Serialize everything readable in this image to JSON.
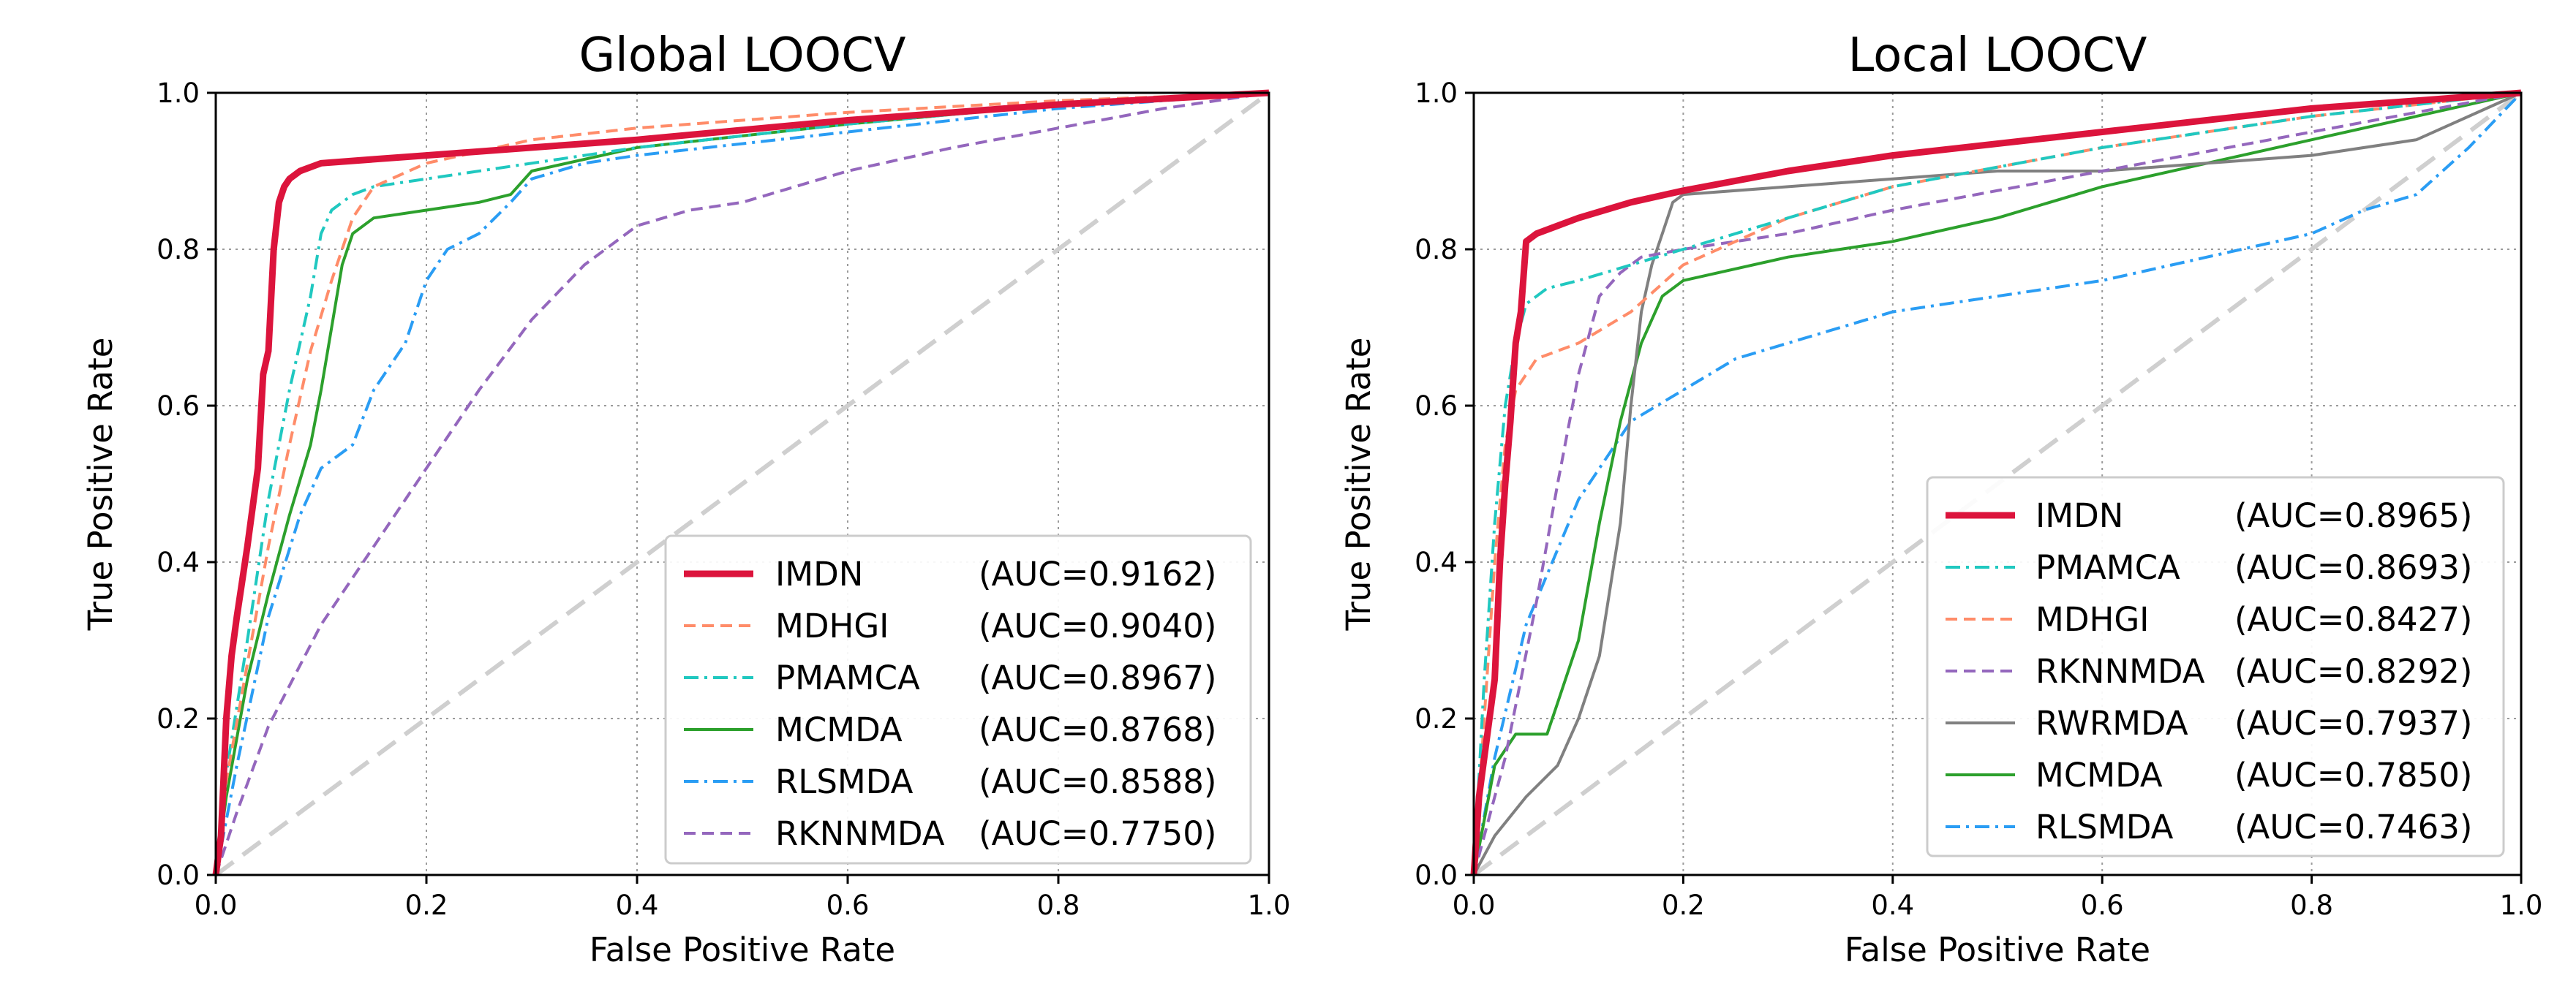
{
  "chart_data": [
    {
      "type": "line",
      "title": "Global LOOCV",
      "xlabel": "False Positive Rate",
      "ylabel": "True Positive Rate",
      "xlim": [
        0.0,
        1.0
      ],
      "ylim": [
        0.0,
        1.0
      ],
      "xticks": [
        "0.0",
        "0.2",
        "0.4",
        "0.6",
        "0.8",
        "1.0"
      ],
      "yticks": [
        "0.0",
        "0.2",
        "0.4",
        "0.6",
        "0.8",
        "1.0"
      ],
      "grid": true,
      "legend_position": "lower-right",
      "series": [
        {
          "name": "IMDN",
          "auc": "(AUC=0.9162)",
          "color": "#dc143c",
          "style": "solid-thick",
          "x": [
            0,
            0.005,
            0.01,
            0.015,
            0.02,
            0.03,
            0.04,
            0.045,
            0.05,
            0.055,
            0.06,
            0.065,
            0.07,
            0.08,
            0.1,
            0.15,
            0.2,
            0.3,
            0.4,
            0.6,
            0.8,
            1.0
          ],
          "y": [
            0,
            0.05,
            0.2,
            0.28,
            0.33,
            0.42,
            0.52,
            0.64,
            0.67,
            0.8,
            0.86,
            0.88,
            0.89,
            0.9,
            0.91,
            0.915,
            0.92,
            0.93,
            0.94,
            0.965,
            0.985,
            1.0
          ]
        },
        {
          "name": "MDHGI",
          "auc": "(AUC=0.9040)",
          "color": "#ff8c69",
          "style": "dashed",
          "x": [
            0,
            0.01,
            0.03,
            0.05,
            0.07,
            0.09,
            0.11,
            0.13,
            0.15,
            0.2,
            0.25,
            0.3,
            0.4,
            0.6,
            0.8,
            1.0
          ],
          "y": [
            0,
            0.12,
            0.27,
            0.42,
            0.55,
            0.67,
            0.76,
            0.84,
            0.88,
            0.91,
            0.925,
            0.94,
            0.955,
            0.975,
            0.99,
            1.0
          ]
        },
        {
          "name": "PMAMCA",
          "auc": "(AUC=0.8967)",
          "color": "#20c8c0",
          "style": "dashdot",
          "x": [
            0,
            0.01,
            0.03,
            0.05,
            0.07,
            0.09,
            0.1,
            0.11,
            0.13,
            0.15,
            0.2,
            0.3,
            0.4,
            0.6,
            0.8,
            1.0
          ],
          "y": [
            0,
            0.13,
            0.3,
            0.48,
            0.62,
            0.74,
            0.82,
            0.85,
            0.87,
            0.88,
            0.89,
            0.91,
            0.93,
            0.96,
            0.985,
            1.0
          ]
        },
        {
          "name": "MCMDA",
          "auc": "(AUC=0.8768)",
          "color": "#2ca02c",
          "style": "solid",
          "x": [
            0,
            0.01,
            0.03,
            0.05,
            0.07,
            0.09,
            0.1,
            0.11,
            0.12,
            0.13,
            0.15,
            0.2,
            0.25,
            0.28,
            0.3,
            0.4,
            0.6,
            0.8,
            1.0
          ],
          "y": [
            0,
            0.1,
            0.25,
            0.36,
            0.46,
            0.55,
            0.62,
            0.7,
            0.78,
            0.82,
            0.84,
            0.85,
            0.86,
            0.87,
            0.9,
            0.93,
            0.96,
            0.985,
            1.0
          ]
        },
        {
          "name": "RLSMDA",
          "auc": "(AUC=0.8588)",
          "color": "#2a9df4",
          "style": "dashdot",
          "x": [
            0,
            0.02,
            0.05,
            0.08,
            0.1,
            0.13,
            0.15,
            0.18,
            0.2,
            0.22,
            0.25,
            0.28,
            0.3,
            0.35,
            0.4,
            0.6,
            0.8,
            1.0
          ],
          "y": [
            0,
            0.14,
            0.33,
            0.46,
            0.52,
            0.55,
            0.62,
            0.68,
            0.76,
            0.8,
            0.82,
            0.86,
            0.89,
            0.91,
            0.92,
            0.95,
            0.98,
            1.0
          ]
        },
        {
          "name": "RKNNMDA",
          "auc": "(AUC=0.7750)",
          "color": "#9467bd",
          "style": "dashed",
          "x": [
            0,
            0.02,
            0.05,
            0.1,
            0.15,
            0.2,
            0.25,
            0.3,
            0.35,
            0.4,
            0.45,
            0.5,
            0.55,
            0.6,
            0.7,
            0.8,
            0.9,
            1.0
          ],
          "y": [
            0,
            0.08,
            0.19,
            0.32,
            0.42,
            0.52,
            0.62,
            0.71,
            0.78,
            0.83,
            0.85,
            0.86,
            0.88,
            0.9,
            0.93,
            0.955,
            0.98,
            1.0
          ]
        }
      ]
    },
    {
      "type": "line",
      "title": "Local LOOCV",
      "xlabel": "False Positive Rate",
      "ylabel": "True Positive Rate",
      "xlim": [
        0.0,
        1.0
      ],
      "ylim": [
        0.0,
        1.0
      ],
      "xticks": [
        "0.0",
        "0.2",
        "0.4",
        "0.6",
        "0.8",
        "1.0"
      ],
      "yticks": [
        "0.0",
        "0.2",
        "0.4",
        "0.6",
        "0.8",
        "1.0"
      ],
      "grid": true,
      "legend_position": "lower-right",
      "series": [
        {
          "name": "IMDN",
          "auc": "(AUC=0.8965)",
          "color": "#dc143c",
          "style": "solid-thick",
          "x": [
            0,
            0.005,
            0.01,
            0.02,
            0.025,
            0.03,
            0.035,
            0.04,
            0.045,
            0.05,
            0.06,
            0.08,
            0.1,
            0.15,
            0.2,
            0.3,
            0.4,
            0.6,
            0.8,
            1.0
          ],
          "y": [
            0,
            0.1,
            0.15,
            0.25,
            0.4,
            0.5,
            0.58,
            0.68,
            0.72,
            0.81,
            0.82,
            0.83,
            0.84,
            0.86,
            0.875,
            0.9,
            0.92,
            0.95,
            0.98,
            1.0
          ]
        },
        {
          "name": "PMAMCA",
          "auc": "(AUC=0.8693)",
          "color": "#20c8c0",
          "style": "dashdot",
          "x": [
            0,
            0.01,
            0.02,
            0.03,
            0.04,
            0.05,
            0.07,
            0.1,
            0.15,
            0.2,
            0.3,
            0.4,
            0.6,
            0.8,
            1.0
          ],
          "y": [
            0,
            0.25,
            0.45,
            0.6,
            0.68,
            0.73,
            0.75,
            0.76,
            0.78,
            0.8,
            0.84,
            0.88,
            0.93,
            0.97,
            1.0
          ]
        },
        {
          "name": "MDHGI",
          "auc": "(AUC=0.8427)",
          "color": "#ff8c69",
          "style": "dashed",
          "x": [
            0,
            0.01,
            0.02,
            0.03,
            0.04,
            0.06,
            0.1,
            0.15,
            0.2,
            0.3,
            0.4,
            0.6,
            0.8,
            1.0
          ],
          "y": [
            0,
            0.2,
            0.4,
            0.55,
            0.62,
            0.66,
            0.68,
            0.72,
            0.78,
            0.84,
            0.88,
            0.93,
            0.97,
            1.0
          ]
        },
        {
          "name": "RKNNMDA",
          "auc": "(AUC=0.8292)",
          "color": "#9467bd",
          "style": "dashed",
          "x": [
            0,
            0.03,
            0.06,
            0.08,
            0.1,
            0.12,
            0.14,
            0.16,
            0.2,
            0.3,
            0.4,
            0.6,
            0.8,
            1.0
          ],
          "y": [
            0,
            0.15,
            0.35,
            0.5,
            0.64,
            0.74,
            0.77,
            0.79,
            0.8,
            0.82,
            0.85,
            0.9,
            0.95,
            1.0
          ]
        },
        {
          "name": "RWRMDA",
          "auc": "(AUC=0.7937)",
          "color": "#808080",
          "style": "solid",
          "x": [
            0,
            0.02,
            0.05,
            0.08,
            0.1,
            0.12,
            0.14,
            0.15,
            0.16,
            0.17,
            0.18,
            0.19,
            0.2,
            0.3,
            0.4,
            0.5,
            0.6,
            0.7,
            0.8,
            0.9,
            1.0
          ],
          "y": [
            0,
            0.05,
            0.1,
            0.14,
            0.2,
            0.28,
            0.45,
            0.6,
            0.72,
            0.78,
            0.82,
            0.86,
            0.87,
            0.88,
            0.89,
            0.9,
            0.9,
            0.91,
            0.92,
            0.94,
            1.0
          ]
        },
        {
          "name": "MCMDA",
          "auc": "(AUC=0.7850)",
          "color": "#2ca02c",
          "style": "solid",
          "x": [
            0,
            0.02,
            0.04,
            0.07,
            0.08,
            0.1,
            0.12,
            0.14,
            0.16,
            0.18,
            0.2,
            0.3,
            0.4,
            0.5,
            0.6,
            0.7,
            0.8,
            0.9,
            1.0
          ],
          "y": [
            0,
            0.14,
            0.18,
            0.18,
            0.22,
            0.3,
            0.45,
            0.58,
            0.68,
            0.74,
            0.76,
            0.79,
            0.81,
            0.84,
            0.88,
            0.91,
            0.94,
            0.97,
            1.0
          ]
        },
        {
          "name": "RLSMDA",
          "auc": "(AUC=0.7463)",
          "color": "#2a9df4",
          "style": "dashdot",
          "x": [
            0,
            0.02,
            0.05,
            0.1,
            0.15,
            0.2,
            0.25,
            0.3,
            0.35,
            0.4,
            0.5,
            0.6,
            0.7,
            0.8,
            0.85,
            0.9,
            0.95,
            1.0
          ],
          "y": [
            0,
            0.15,
            0.32,
            0.48,
            0.58,
            0.62,
            0.66,
            0.68,
            0.7,
            0.72,
            0.74,
            0.76,
            0.79,
            0.82,
            0.85,
            0.87,
            0.93,
            1.0
          ]
        }
      ]
    }
  ]
}
